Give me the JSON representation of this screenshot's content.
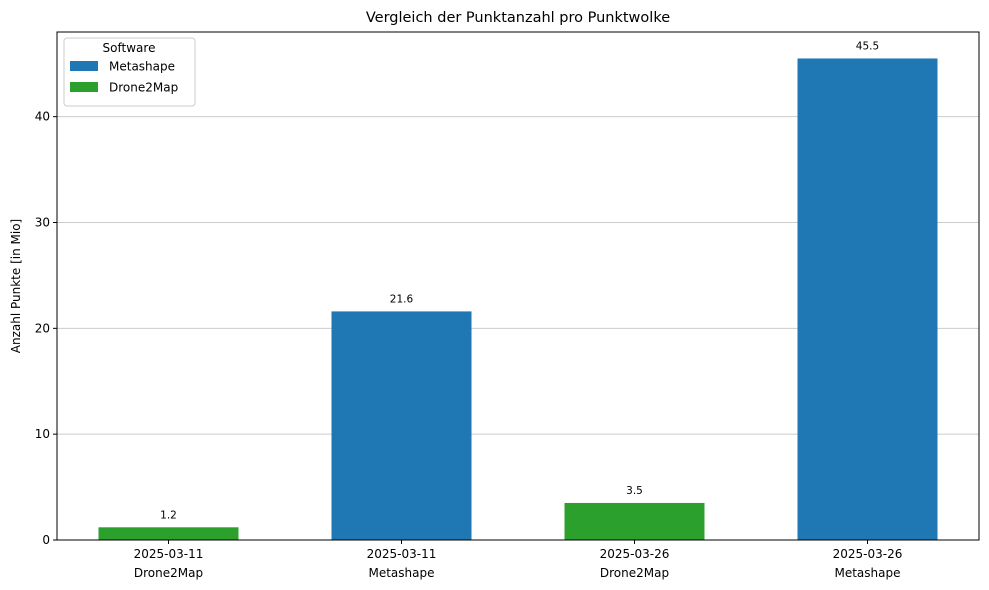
{
  "chart_data": {
    "type": "bar",
    "title": "Vergleich der Punktanzahl pro Punktwolke",
    "xlabel": "",
    "ylabel": "Anzahl Punkte [in Mio]",
    "ylim": [
      0,
      48
    ],
    "yticks": [
      0,
      10,
      20,
      30,
      40
    ],
    "grid": "y",
    "categories": [
      {
        "date": "2025-03-11",
        "software": "Drone2Map"
      },
      {
        "date": "2025-03-11",
        "software": "Metashape"
      },
      {
        "date": "2025-03-26",
        "software": "Drone2Map"
      },
      {
        "date": "2025-03-26",
        "software": "Metashape"
      }
    ],
    "values": [
      1.2,
      21.6,
      3.5,
      45.5
    ],
    "value_labels": [
      "1.2",
      "21.6",
      "3.5",
      "45.5"
    ],
    "legend": {
      "title": "Software",
      "placement": "top-left",
      "entries": [
        {
          "name": "Metashape",
          "color": "#1f77b4"
        },
        {
          "name": "Drone2Map",
          "color": "#2ca02c"
        }
      ]
    },
    "colors": {
      "Metashape": "#1f77b4",
      "Drone2Map": "#2ca02c"
    }
  }
}
